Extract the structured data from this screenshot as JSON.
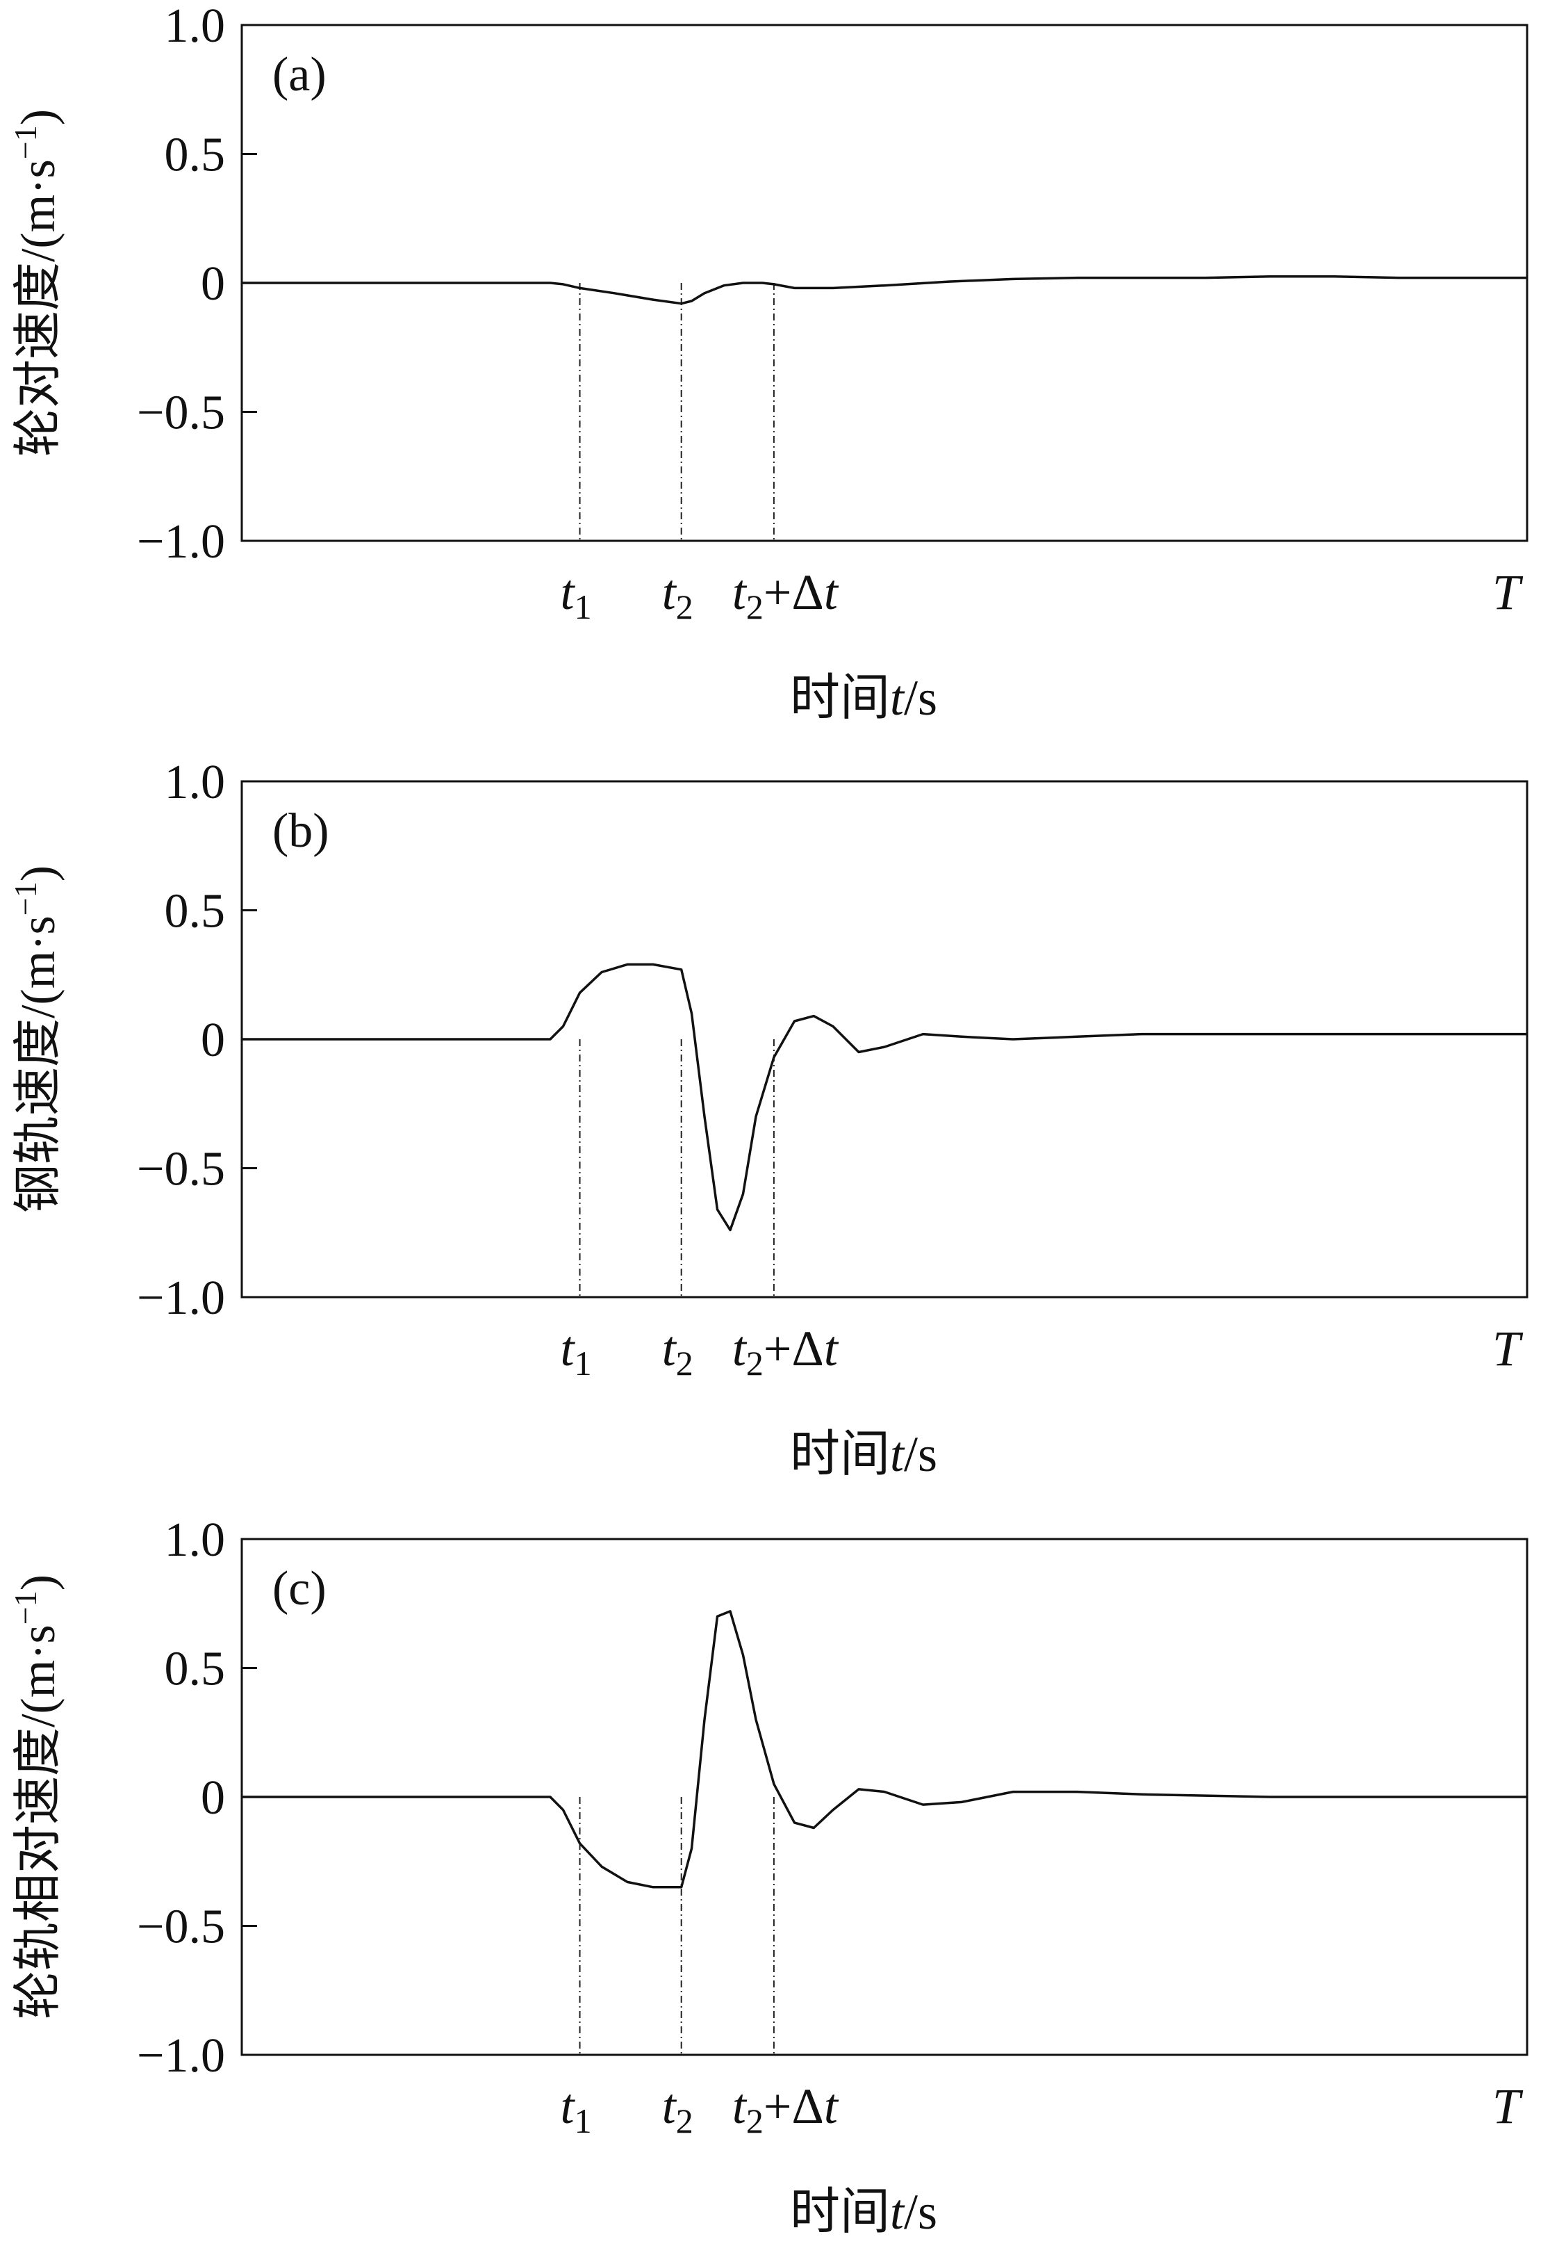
{
  "chart_data": [
    {
      "type": "line",
      "panel": "(a)",
      "ylabel": "轮对速度/(m·s",
      "ylabel_sup": "−1",
      "ylabel_close": ")",
      "xlabel": "时间",
      "xlabel_var": "t",
      "xlabel_unit": "/s",
      "ylim": [
        -1.0,
        1.0
      ],
      "xlim": [
        0,
        1
      ],
      "yticks": [
        "1.0",
        "0.5",
        "0",
        "−0.5",
        "−1.0"
      ],
      "ytick_values": [
        1.0,
        0.5,
        0,
        -0.5,
        -1.0
      ],
      "markers": [
        {
          "x": 0.263,
          "label": "t",
          "sub": "1",
          "tail": ""
        },
        {
          "x": 0.342,
          "label": "t",
          "sub": "2",
          "tail": ""
        },
        {
          "x": 0.414,
          "label": "t",
          "sub": "2",
          "tail": "+Δ",
          "tail_it": "t"
        }
      ],
      "end_label": "T",
      "x": [
        0,
        0.05,
        0.1,
        0.15,
        0.2,
        0.24,
        0.25,
        0.263,
        0.29,
        0.32,
        0.342,
        0.35,
        0.36,
        0.375,
        0.39,
        0.405,
        0.414,
        0.43,
        0.46,
        0.5,
        0.55,
        0.6,
        0.65,
        0.7,
        0.75,
        0.8,
        0.85,
        0.9,
        0.95,
        1.0
      ],
      "y": [
        0,
        0,
        0,
        0,
        0,
        0,
        -0.005,
        -0.02,
        -0.04,
        -0.065,
        -0.08,
        -0.07,
        -0.04,
        -0.01,
        0,
        0,
        -0.005,
        -0.02,
        -0.02,
        -0.01,
        0.005,
        0.015,
        0.02,
        0.02,
        0.02,
        0.025,
        0.025,
        0.02,
        0.02,
        0.02
      ]
    },
    {
      "type": "line",
      "panel": "(b)",
      "ylabel": "钢轨速度/(m·s",
      "ylabel_sup": "−1",
      "ylabel_close": ")",
      "xlabel": "时间",
      "xlabel_var": "t",
      "xlabel_unit": "/s",
      "ylim": [
        -1.0,
        1.0
      ],
      "xlim": [
        0,
        1
      ],
      "yticks": [
        "1.0",
        "0.5",
        "0",
        "−0.5",
        "−1.0"
      ],
      "ytick_values": [
        1.0,
        0.5,
        0,
        -0.5,
        -1.0
      ],
      "markers": [
        {
          "x": 0.263,
          "label": "t",
          "sub": "1",
          "tail": ""
        },
        {
          "x": 0.342,
          "label": "t",
          "sub": "2",
          "tail": ""
        },
        {
          "x": 0.414,
          "label": "t",
          "sub": "2",
          "tail": "+Δ",
          "tail_it": "t"
        }
      ],
      "end_label": "T",
      "x": [
        0,
        0.1,
        0.2,
        0.24,
        0.25,
        0.263,
        0.28,
        0.3,
        0.32,
        0.342,
        0.35,
        0.36,
        0.37,
        0.38,
        0.39,
        0.4,
        0.414,
        0.43,
        0.445,
        0.46,
        0.48,
        0.5,
        0.53,
        0.56,
        0.6,
        0.65,
        0.7,
        0.8,
        0.9,
        1.0
      ],
      "y": [
        0,
        0,
        0,
        0,
        0.05,
        0.18,
        0.26,
        0.29,
        0.29,
        0.27,
        0.1,
        -0.3,
        -0.66,
        -0.74,
        -0.6,
        -0.3,
        -0.07,
        0.07,
        0.09,
        0.05,
        -0.05,
        -0.03,
        0.02,
        0.01,
        0,
        0.01,
        0.02,
        0.02,
        0.02,
        0.02
      ]
    },
    {
      "type": "line",
      "panel": "(c)",
      "ylabel": "轮轨相对速度/(m·s",
      "ylabel_sup": "−1",
      "ylabel_close": ")",
      "xlabel": "时间",
      "xlabel_var": "t",
      "xlabel_unit": "/s",
      "ylim": [
        -1.0,
        1.0
      ],
      "xlim": [
        0,
        1
      ],
      "yticks": [
        "1.0",
        "0.5",
        "0",
        "−0.5",
        "−1.0"
      ],
      "ytick_values": [
        1.0,
        0.5,
        0,
        -0.5,
        -1.0
      ],
      "markers": [
        {
          "x": 0.263,
          "label": "t",
          "sub": "1",
          "tail": ""
        },
        {
          "x": 0.342,
          "label": "t",
          "sub": "2",
          "tail": ""
        },
        {
          "x": 0.414,
          "label": "t",
          "sub": "2",
          "tail": "+Δ",
          "tail_it": "t"
        }
      ],
      "end_label": "T",
      "x": [
        0,
        0.1,
        0.2,
        0.24,
        0.25,
        0.263,
        0.28,
        0.3,
        0.32,
        0.342,
        0.35,
        0.36,
        0.37,
        0.38,
        0.39,
        0.4,
        0.414,
        0.43,
        0.445,
        0.46,
        0.48,
        0.5,
        0.53,
        0.56,
        0.6,
        0.65,
        0.7,
        0.8,
        0.9,
        1.0
      ],
      "y": [
        0,
        0,
        0,
        0,
        -0.05,
        -0.18,
        -0.27,
        -0.33,
        -0.35,
        -0.35,
        -0.2,
        0.3,
        0.7,
        0.72,
        0.55,
        0.3,
        0.05,
        -0.1,
        -0.12,
        -0.05,
        0.03,
        0.02,
        -0.03,
        -0.02,
        0.02,
        0.02,
        0.01,
        0,
        0,
        0
      ]
    }
  ]
}
